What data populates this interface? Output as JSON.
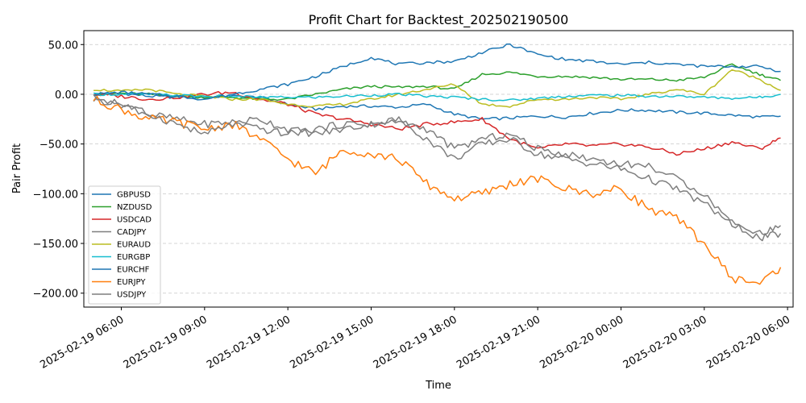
{
  "chart_data": {
    "type": "line",
    "title": "Profit Chart for Backtest_202502190500",
    "xlabel": "Time",
    "ylabel": "Pair Profit",
    "x_ticks": [
      {
        "hour": 1,
        "label": "2025-02-19 06:00"
      },
      {
        "hour": 4,
        "label": "2025-02-19 09:00"
      },
      {
        "hour": 7,
        "label": "2025-02-19 12:00"
      },
      {
        "hour": 10,
        "label": "2025-02-19 15:00"
      },
      {
        "hour": 13,
        "label": "2025-02-19 18:00"
      },
      {
        "hour": 16,
        "label": "2025-02-19 21:00"
      },
      {
        "hour": 19,
        "label": "2025-02-20 00:00"
      },
      {
        "hour": 22,
        "label": "2025-02-20 03:00"
      },
      {
        "hour": 25,
        "label": "2025-02-20 06:00"
      }
    ],
    "y_ticks": [
      50,
      0,
      -50,
      -100,
      -150,
      -200
    ],
    "y_tick_labels": [
      "50.00",
      "0.00",
      "−50.00",
      "−100.00",
      "−150.00",
      "−200.00"
    ],
    "xlim": [
      -0.35,
      25.2
    ],
    "ylim": [
      -214,
      64
    ],
    "grid": "y-dashed",
    "legend_position": "lower-left",
    "series": [
      {
        "name": "GBPUSD",
        "color": "#1f77b4",
        "x": [
          0,
          1,
          2,
          3,
          4,
          5,
          6,
          7,
          8,
          9,
          10,
          11,
          12,
          13,
          14,
          15,
          16,
          17,
          18,
          19,
          20,
          21,
          22,
          23,
          24,
          24.75
        ],
        "y": [
          0,
          1,
          -2,
          -3,
          -3,
          -2,
          -3,
          -10,
          -15,
          -12,
          -12,
          -13,
          -10,
          -20,
          -25,
          -24,
          -22,
          -23,
          -19,
          -16,
          -16,
          -18,
          -19,
          -21,
          -23,
          -22
        ]
      },
      {
        "name": "NZDUSD",
        "color": "#2ca02c",
        "x": [
          0,
          1,
          2,
          3,
          4,
          5,
          6,
          7,
          8,
          9,
          10,
          11,
          12,
          13,
          14,
          15,
          16,
          17,
          18,
          19,
          20,
          21,
          22,
          23,
          24,
          24.75
        ],
        "y": [
          0,
          1,
          0,
          -2,
          -3,
          -3,
          -5,
          -5,
          0,
          5,
          8,
          7,
          8,
          5,
          20,
          22,
          18,
          18,
          17,
          15,
          15,
          14,
          17,
          30,
          20,
          14
        ]
      },
      {
        "name": "USDCAD",
        "color": "#d62728",
        "x": [
          0,
          1,
          2,
          3,
          4,
          5,
          6,
          7,
          8,
          9,
          10,
          11,
          12,
          13,
          14,
          15,
          16,
          17,
          18,
          19,
          20,
          21,
          22,
          23,
          24,
          24.75
        ],
        "y": [
          0,
          -2,
          -5,
          -3,
          0,
          2,
          -5,
          -10,
          -20,
          -25,
          -30,
          -35,
          -30,
          -28,
          -25,
          -45,
          -55,
          -50,
          -52,
          -50,
          -53,
          -60,
          -55,
          -48,
          -55,
          -44
        ]
      },
      {
        "name": "CADJPY",
        "color": "#7f7f7f",
        "x": [
          0,
          1,
          2,
          3,
          4,
          5,
          6,
          7,
          8,
          9,
          10,
          11,
          12,
          13,
          14,
          15,
          16,
          17,
          18,
          19,
          20,
          21,
          22,
          23,
          24,
          24.75
        ],
        "y": [
          -5,
          -10,
          -20,
          -25,
          -30,
          -28,
          -25,
          -35,
          -40,
          -35,
          -30,
          -25,
          -45,
          -65,
          -50,
          -45,
          -60,
          -65,
          -70,
          -75,
          -85,
          -95,
          -110,
          -130,
          -145,
          -140
        ]
      },
      {
        "name": "EURAUD",
        "color": "#bcbd22",
        "x": [
          0,
          1,
          2,
          3,
          4,
          5,
          6,
          7,
          8,
          9,
          10,
          11,
          12,
          13,
          14,
          15,
          16,
          17,
          18,
          19,
          20,
          21,
          22,
          23,
          24,
          24.75
        ],
        "y": [
          5,
          3,
          5,
          0,
          -2,
          -5,
          -5,
          -10,
          -12,
          -10,
          -5,
          0,
          5,
          10,
          -10,
          -12,
          -5,
          -5,
          -3,
          -5,
          0,
          5,
          0,
          25,
          15,
          4
        ]
      },
      {
        "name": "EURGBP",
        "color": "#17becf",
        "x": [
          0,
          1,
          2,
          3,
          4,
          5,
          6,
          7,
          8,
          9,
          10,
          11,
          12,
          13,
          14,
          15,
          16,
          17,
          18,
          19,
          20,
          21,
          22,
          23,
          24,
          24.75
        ],
        "y": [
          0,
          0,
          0,
          -1,
          -2,
          -2,
          -3,
          -3,
          -3,
          -2,
          -1,
          0,
          -2,
          -3,
          -5,
          -6,
          -4,
          -2,
          -1,
          -1,
          -2,
          -2,
          -3,
          -4,
          -3,
          0
        ]
      },
      {
        "name": "EURCHF",
        "color": "#1f77b4",
        "x": [
          0,
          1,
          2,
          3,
          4,
          5,
          6,
          7,
          8,
          9,
          10,
          11,
          12,
          13,
          14,
          15,
          16,
          17,
          18,
          19,
          20,
          21,
          22,
          23,
          24,
          24.75
        ],
        "y": [
          0,
          2,
          0,
          -2,
          -5,
          0,
          5,
          10,
          18,
          28,
          37,
          30,
          32,
          33,
          42,
          50,
          40,
          35,
          33,
          30,
          32,
          30,
          28,
          28,
          28,
          23
        ]
      },
      {
        "name": "EURJPY",
        "color": "#ff7f0e",
        "x": [
          0,
          1,
          2,
          3,
          4,
          5,
          6,
          7,
          8,
          9,
          10,
          11,
          12,
          13,
          14,
          15,
          16,
          17,
          18,
          19,
          20,
          21,
          22,
          23,
          24,
          24.75
        ],
        "y": [
          -5,
          -15,
          -25,
          -28,
          -35,
          -30,
          -45,
          -65,
          -80,
          -55,
          -60,
          -65,
          -90,
          -105,
          -100,
          -90,
          -85,
          -95,
          -100,
          -95,
          -115,
          -125,
          -150,
          -185,
          -190,
          -174
        ]
      },
      {
        "name": "USDJPY",
        "color": "#7f7f7f",
        "x": [
          0,
          1,
          2,
          3,
          4,
          5,
          6,
          7,
          8,
          9,
          10,
          11,
          12,
          13,
          14,
          15,
          16,
          17,
          18,
          19,
          20,
          21,
          22,
          23,
          24,
          24.75
        ],
        "y": [
          -3,
          -10,
          -20,
          -30,
          -40,
          -30,
          -35,
          -40,
          -35,
          -30,
          -30,
          -28,
          -35,
          -55,
          -45,
          -40,
          -55,
          -60,
          -65,
          -70,
          -72,
          -85,
          -100,
          -130,
          -140,
          -132
        ]
      }
    ]
  }
}
